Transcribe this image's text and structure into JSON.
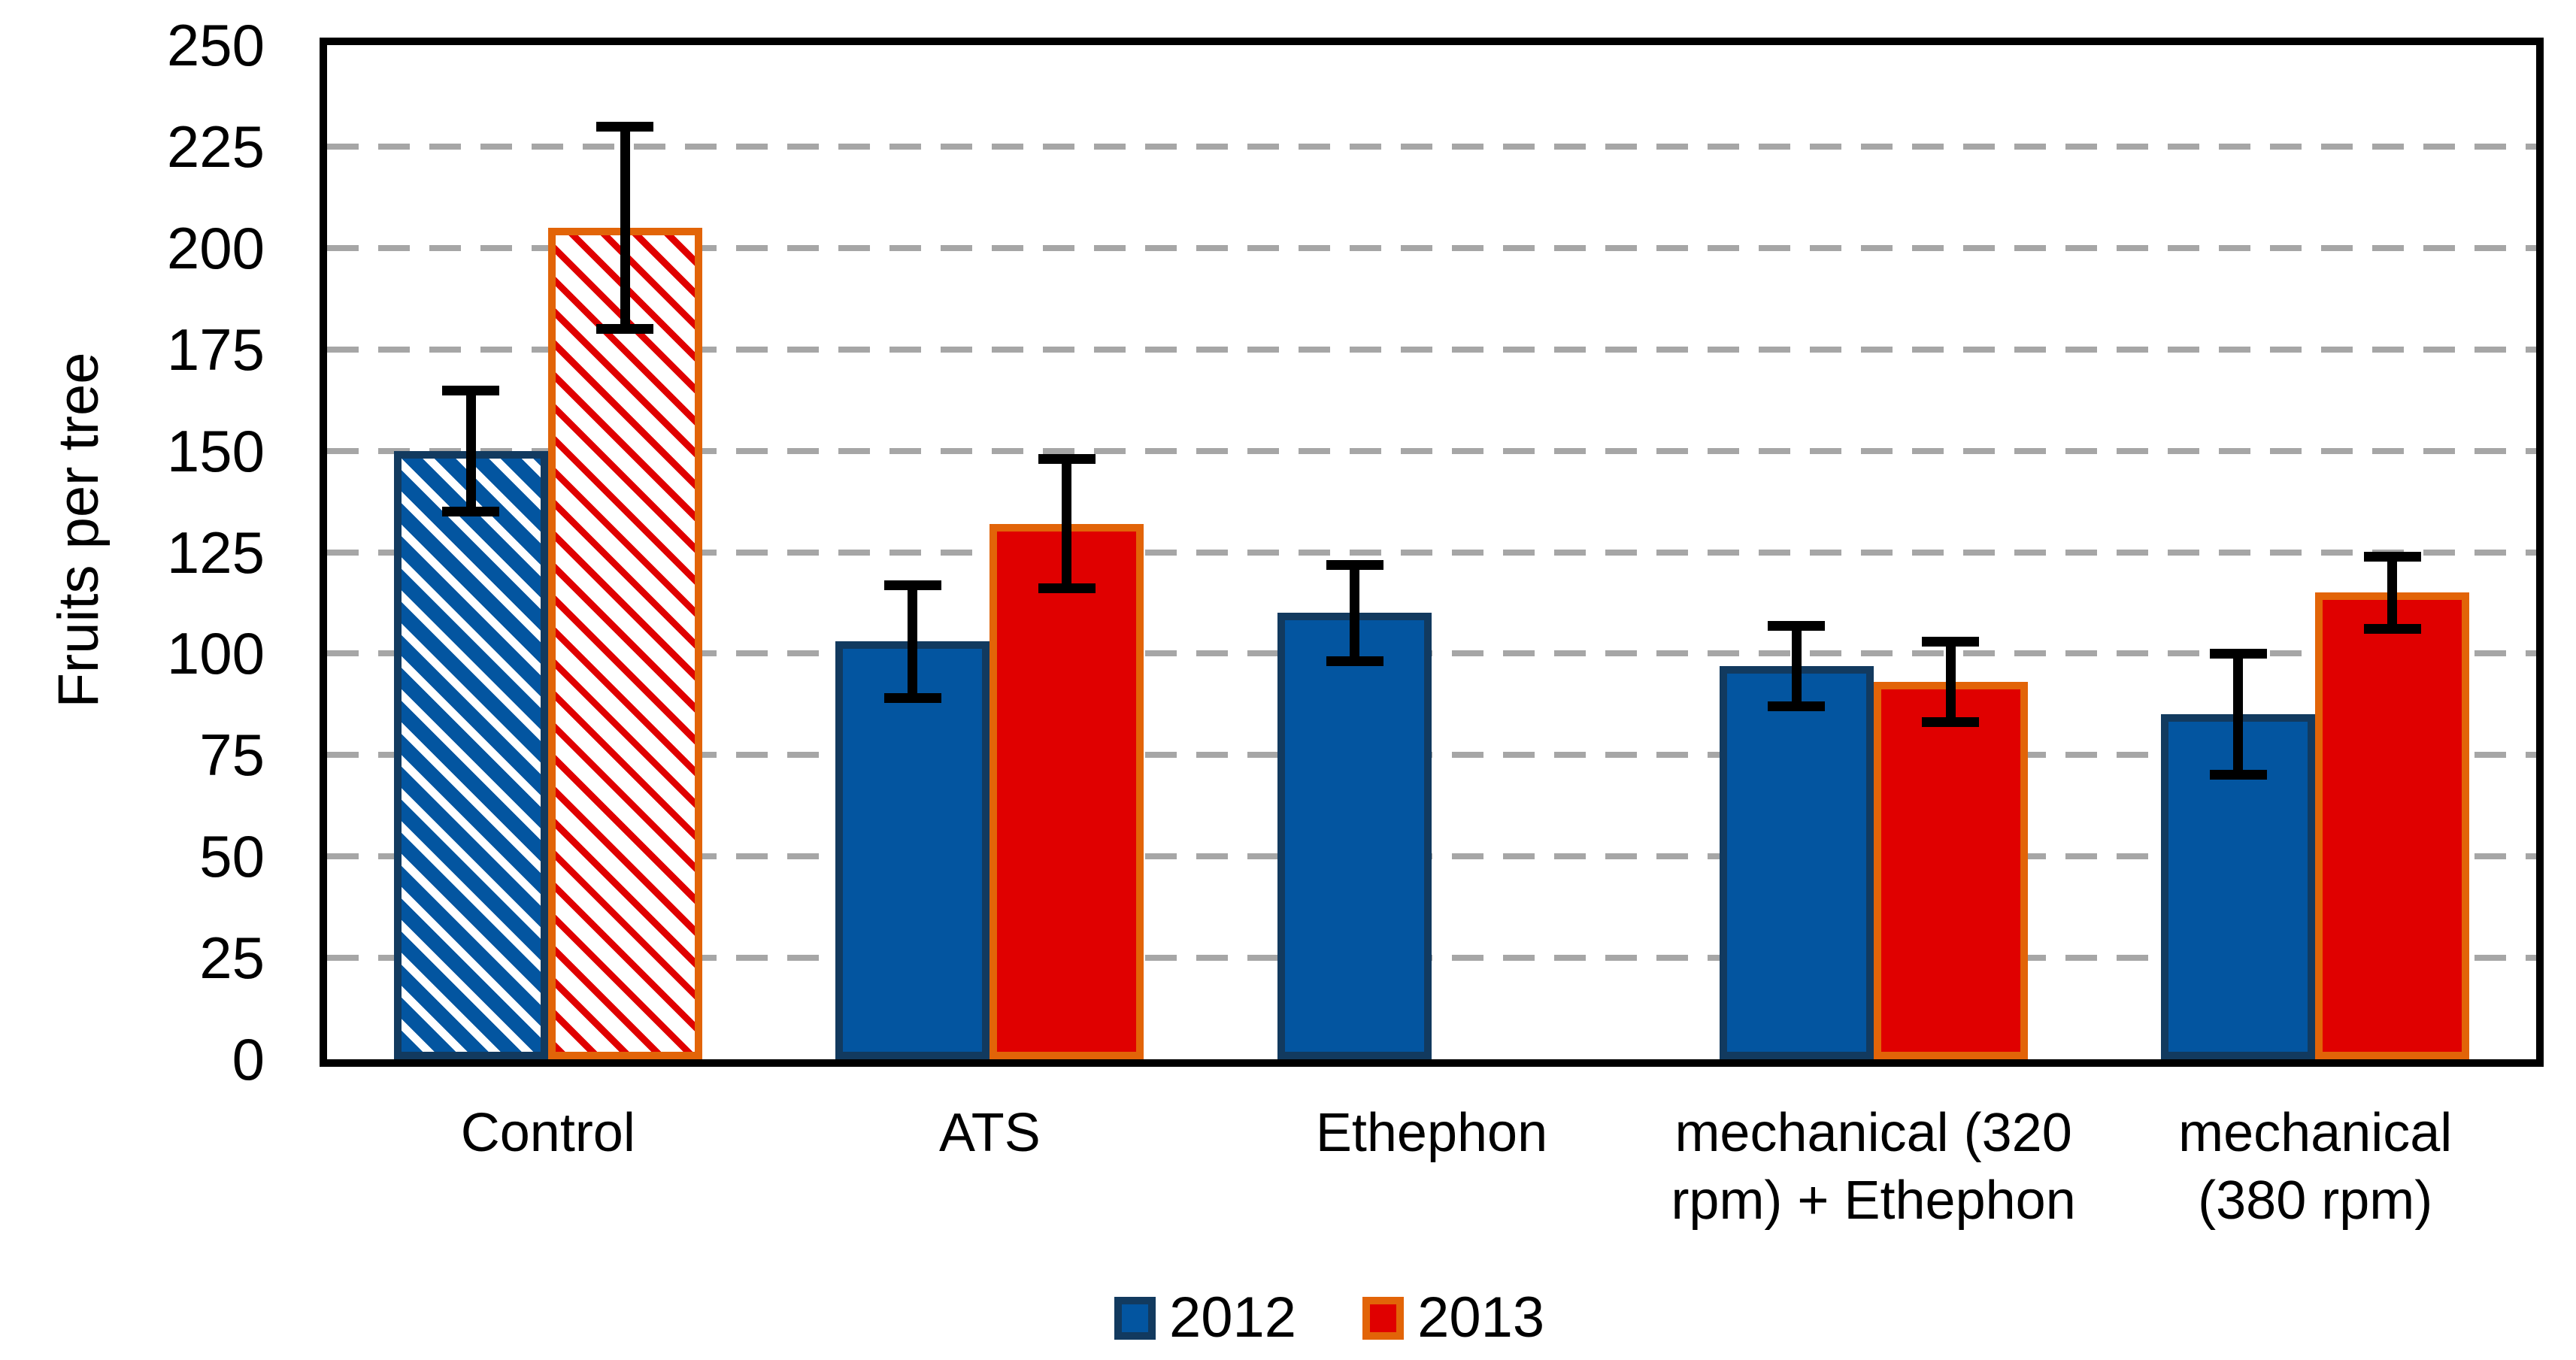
{
  "page": {
    "background": "#FFFFFF"
  },
  "chart_data": {
    "type": "bar",
    "title": "",
    "xlabel": "",
    "ylabel": "Fruits per tree",
    "ylim": [
      0,
      250
    ],
    "ytick_step": 25,
    "yticks": [
      "0",
      "25",
      "50",
      "75",
      "100",
      "125",
      "150",
      "175",
      "200",
      "225",
      "250"
    ],
    "categories": [
      "Control",
      "ATS",
      "Ethephon",
      "mechanical (320 rpm) + Ethephon",
      "mechanical (380 rpm)"
    ],
    "category_label_lines": [
      [
        "Control"
      ],
      [
        "ATS"
      ],
      [
        "Ethephon"
      ],
      [
        "mechanical (320",
        "rpm) + Ethephon"
      ],
      [
        "mechanical",
        "(380 rpm)"
      ]
    ],
    "series": [
      {
        "name": "2012",
        "fill": "#0355A0",
        "border": "#123A5F",
        "values": [
          150,
          103,
          110,
          97,
          85
        ],
        "errors": [
          15,
          14,
          12,
          10,
          15
        ]
      },
      {
        "name": "2013",
        "fill": "#E00000",
        "border": "#E26408",
        "values": [
          205,
          132,
          null,
          93,
          115
        ],
        "errors": [
          25,
          16,
          null,
          10,
          9
        ]
      }
    ],
    "hatched_categories": [
      0
    ],
    "hatch_style": "diagonal-stripes-45deg-on-white",
    "grid": {
      "horizontal": true,
      "style": "dashed",
      "color": "#A6A6A6"
    },
    "axis_color": "#000000",
    "error_bar_color": "#000000",
    "plot_border": "full-black-box",
    "legend": {
      "position": "bottom-center",
      "items": [
        "2012",
        "2013"
      ]
    }
  }
}
